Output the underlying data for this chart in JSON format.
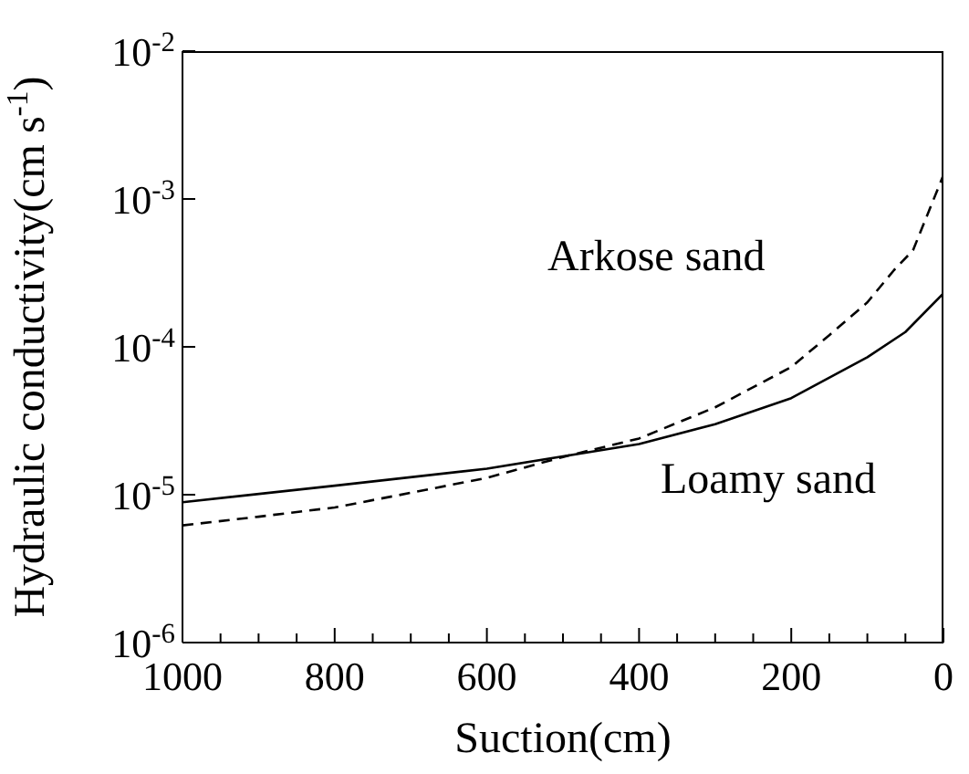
{
  "chart_data": {
    "type": "line",
    "xlabel": "Suction(cm)",
    "ylabel": "Hydraulic conductivity(cm s$^{-1}$)",
    "log": "y",
    "marker": "none",
    "xlim": [
      1000,
      0
    ],
    "ylim": [
      1e-06,
      0.01
    ],
    "xticks": [
      1000,
      {
        "value": 950,
        "label": null
      },
      {
        "value": 900,
        "label": null
      },
      {
        "value": 850,
        "label": null
      },
      800,
      {
        "value": 750,
        "label": null
      },
      {
        "value": 700,
        "label": null
      },
      {
        "value": 650,
        "label": null
      },
      600,
      {
        "value": 550,
        "label": null
      },
      {
        "value": 500,
        "label": null
      },
      {
        "value": 450,
        "label": null
      },
      400,
      {
        "value": 350,
        "label": null
      },
      {
        "value": 300,
        "label": null
      },
      {
        "value": 250,
        "label": null
      },
      200,
      {
        "value": 150,
        "label": null
      },
      {
        "value": 100,
        "label": null
      },
      {
        "value": 50,
        "label": null
      },
      0
    ],
    "yticks": [
      {
        "value": 1e-06,
        "label": "10$^{-6}$"
      },
      {
        "value": 1e-05,
        "label": "10$^{-5}$"
      },
      {
        "value": 0.0001,
        "label": "10$^{-4}$"
      },
      {
        "value": 0.001,
        "label": "10$^{-3}$"
      },
      {
        "value": 0.01,
        "label": "10$^{-2}$"
      }
    ],
    "series": [
      {
        "name": "Arkose sand",
        "color": "#000000",
        "line_style": "dashed",
        "x": [
          1000,
          900,
          800,
          700,
          600,
          500,
          400,
          300,
          200,
          150,
          100,
          65,
          40,
          0
        ],
        "values": [
          6.2e-06,
          7.1e-06,
          8.2e-06,
          1.03e-05,
          1.3e-05,
          1.8e-05,
          2.4e-05,
          3.9e-05,
          7.3e-05,
          0.00012,
          0.0002,
          0.00033,
          0.00045,
          0.00145
        ]
      },
      {
        "name": "Loamy sand",
        "color": "#000000",
        "line_style": "solid",
        "x": [
          1000,
          800,
          600,
          400,
          300,
          200,
          100,
          50,
          0
        ],
        "values": [
          8.9e-06,
          1.15e-05,
          1.5e-05,
          2.2e-05,
          3e-05,
          4.5e-05,
          8.5e-05,
          0.000126,
          0.00023
        ]
      }
    ]
  }
}
